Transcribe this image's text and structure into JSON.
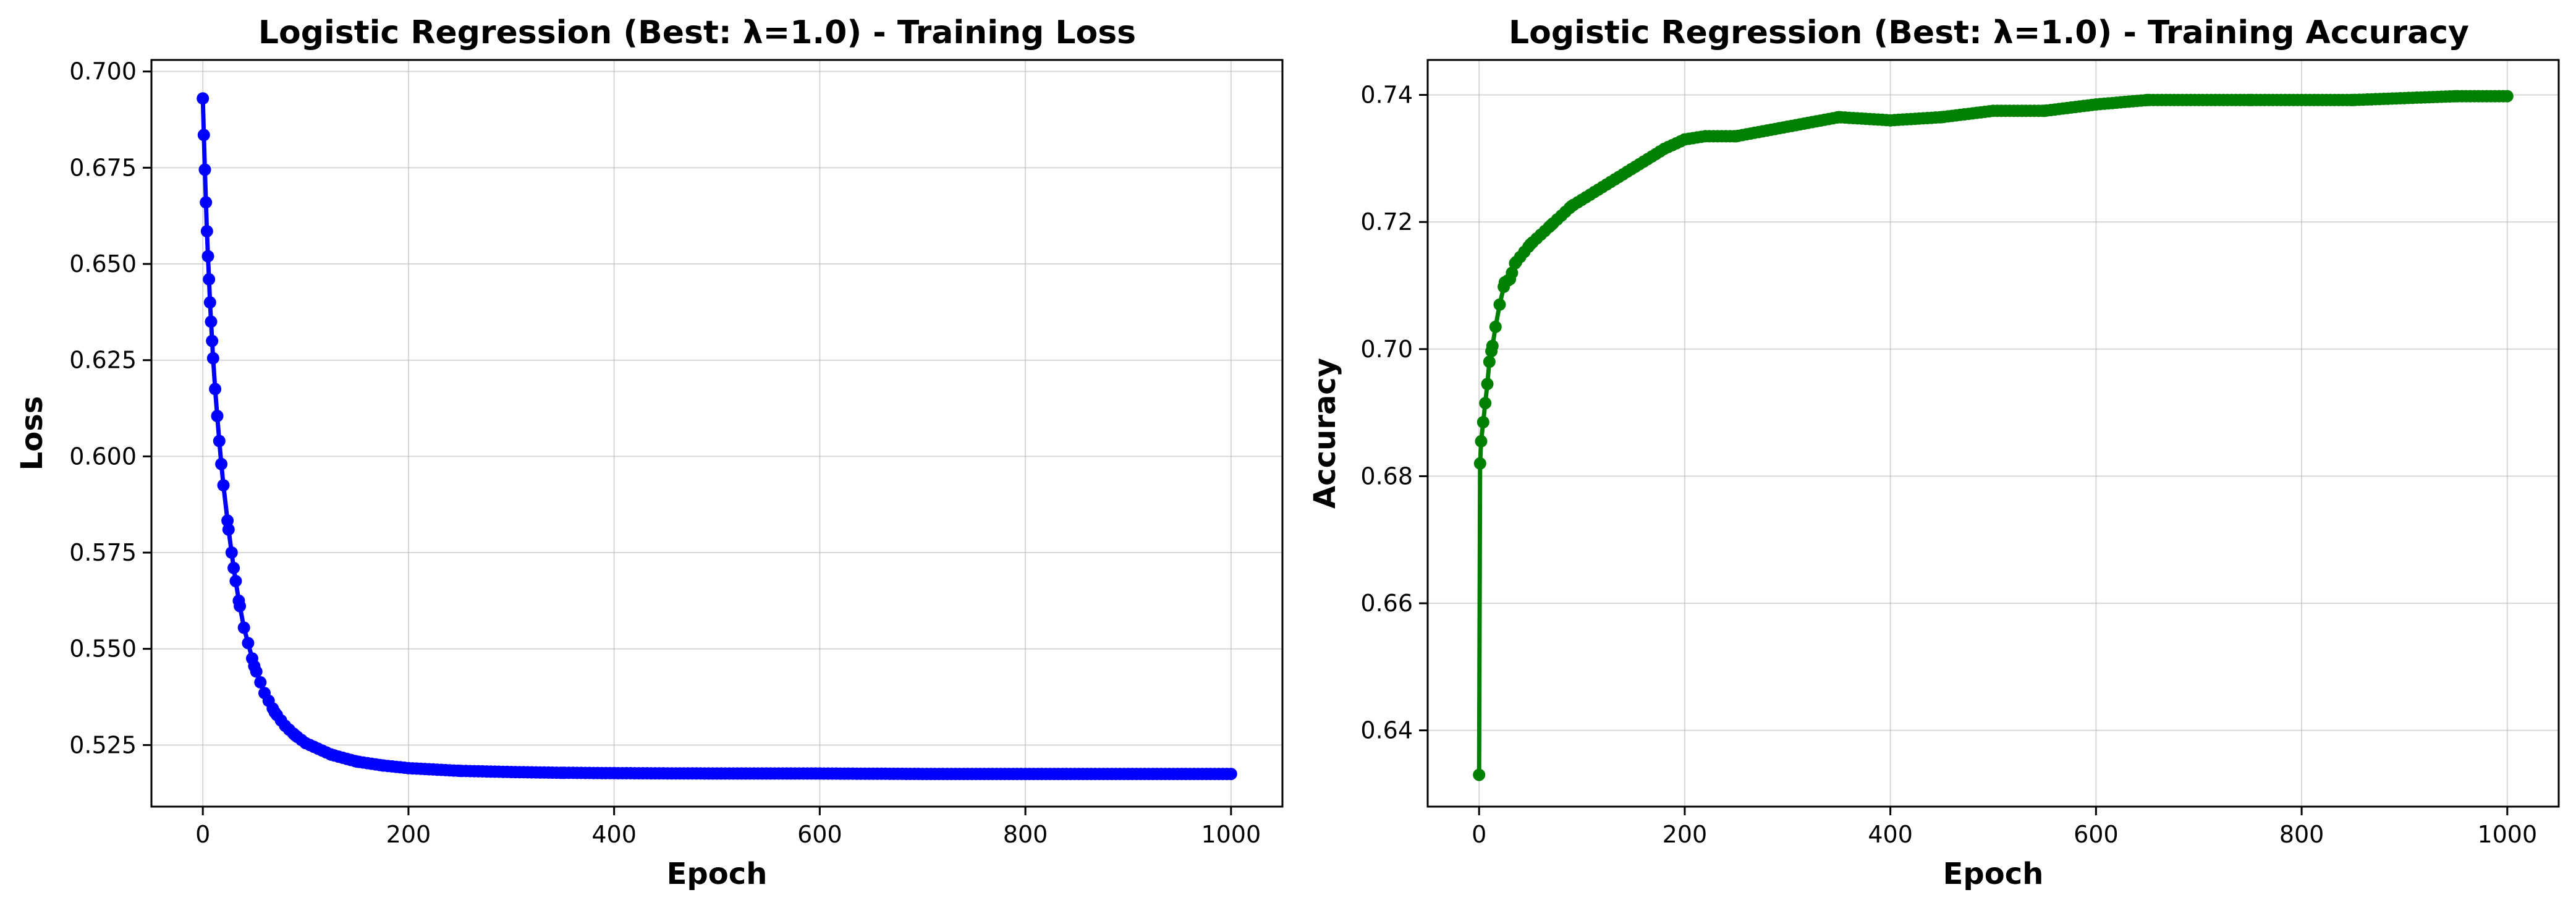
{
  "chart_data": [
    {
      "type": "line",
      "title": "Logistic Regression (Best: λ=1.0) - Training Loss",
      "xlabel": "Epoch",
      "ylabel": "Loss",
      "xlim": [
        -50,
        1050
      ],
      "ylim": [
        0.509,
        0.703
      ],
      "xticks": [
        0,
        200,
        400,
        600,
        800,
        1000
      ],
      "xtick_labels": [
        "0",
        "200",
        "400",
        "600",
        "800",
        "1000"
      ],
      "yticks": [
        0.525,
        0.55,
        0.575,
        0.6,
        0.625,
        0.65,
        0.675,
        0.7
      ],
      "ytick_labels": [
        "0.525",
        "0.550",
        "0.575",
        "0.600",
        "0.625",
        "0.650",
        "0.675",
        "0.700"
      ],
      "grid": true,
      "series": [
        {
          "color": "#0000ff",
          "marker": "circle",
          "x": [
            0,
            1,
            2,
            3,
            4,
            5,
            6,
            7,
            8,
            9,
            10,
            12,
            14,
            16,
            18,
            20,
            25,
            30,
            35,
            40,
            50,
            60,
            70,
            80,
            90,
            100,
            125,
            150,
            175,
            200,
            250,
            300,
            350,
            400,
            500,
            600,
            700,
            800,
            900,
            1000
          ],
          "y": [
            0.693,
            0.6835,
            0.6745,
            0.666,
            0.6585,
            0.652,
            0.646,
            0.64,
            0.635,
            0.63,
            0.6255,
            0.6175,
            0.6105,
            0.604,
            0.598,
            0.5925,
            0.581,
            0.571,
            0.5625,
            0.5555,
            0.5455,
            0.5385,
            0.5335,
            0.53,
            0.5275,
            0.5255,
            0.5225,
            0.5207,
            0.5197,
            0.519,
            0.5183,
            0.518,
            0.5178,
            0.5177,
            0.5176,
            0.5176,
            0.5175,
            0.5175,
            0.5175,
            0.5175
          ]
        }
      ]
    },
    {
      "type": "line",
      "title": "Logistic Regression (Best: λ=1.0) - Training Accuracy",
      "xlabel": "Epoch",
      "ylabel": "Accuracy",
      "xlim": [
        -50,
        1050
      ],
      "ylim": [
        0.628,
        0.7455
      ],
      "xticks": [
        0,
        200,
        400,
        600,
        800,
        1000
      ],
      "xtick_labels": [
        "0",
        "200",
        "400",
        "600",
        "800",
        "1000"
      ],
      "yticks": [
        0.64,
        0.66,
        0.68,
        0.7,
        0.72,
        0.74
      ],
      "ytick_labels": [
        "0.64",
        "0.66",
        "0.68",
        "0.70",
        "0.72",
        "0.74"
      ],
      "grid": true,
      "series": [
        {
          "color": "#008000",
          "marker": "circle",
          "x": [
            0,
            1,
            2,
            4,
            6,
            8,
            10,
            13,
            16,
            20,
            25,
            30,
            35,
            40,
            50,
            60,
            70,
            80,
            90,
            100,
            120,
            140,
            160,
            180,
            200,
            220,
            250,
            300,
            350,
            400,
            450,
            500,
            550,
            600,
            650,
            700,
            750,
            800,
            850,
            900,
            950,
            1000
          ],
          "y": [
            0.633,
            0.682,
            0.6855,
            0.6885,
            0.6915,
            0.6945,
            0.698,
            0.7005,
            0.7035,
            0.707,
            0.7105,
            0.711,
            0.7135,
            0.7145,
            0.7165,
            0.718,
            0.7195,
            0.721,
            0.7225,
            0.7235,
            0.7255,
            0.7275,
            0.7295,
            0.7315,
            0.733,
            0.7335,
            0.7335,
            0.735,
            0.7365,
            0.736,
            0.7365,
            0.7375,
            0.7375,
            0.7385,
            0.7392,
            0.7392,
            0.7392,
            0.7392,
            0.7392,
            0.7395,
            0.7398,
            0.7398
          ]
        }
      ]
    }
  ]
}
